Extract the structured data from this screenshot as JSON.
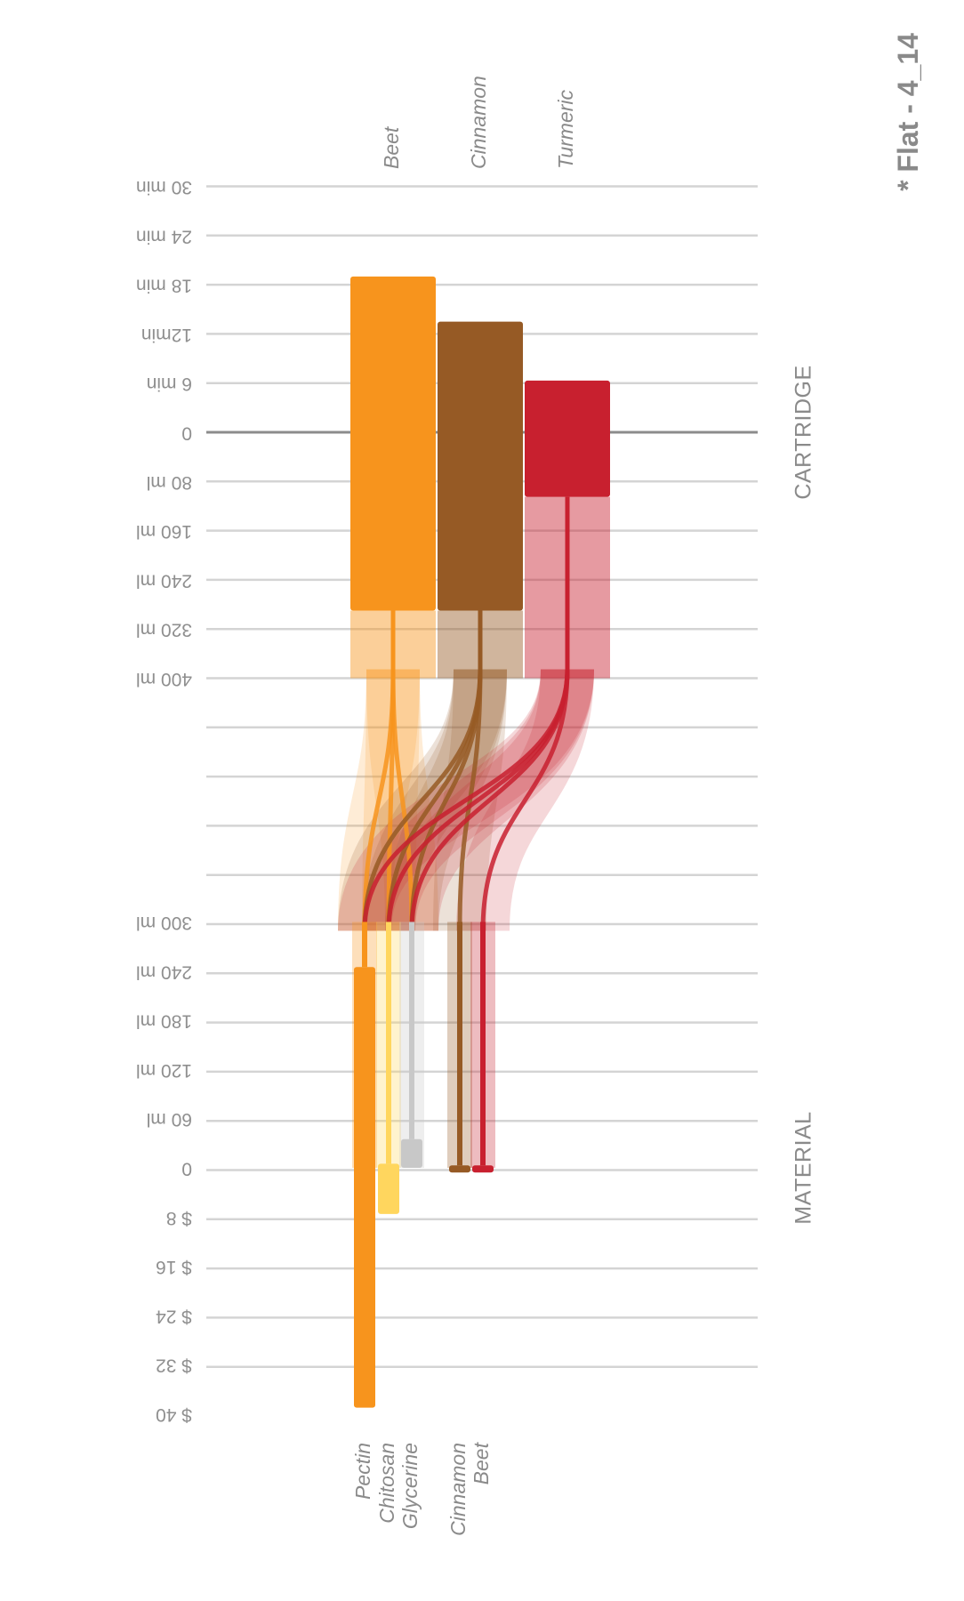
{
  "title": "* Flat - 4_14",
  "chart_data": {
    "type": "bar",
    "sections": [
      {
        "name": "CARTRIDGE",
        "panels": [
          {
            "key": "time",
            "ticks": [
              "0",
              "6 min",
              "12min",
              "18 min",
              "24 min",
              "30 min"
            ],
            "max": 30
          },
          {
            "key": "volume",
            "ticks": [
              "80 ml",
              "160 ml",
              "240 ml",
              "320 ml",
              "400 ml"
            ],
            "max": 400
          }
        ],
        "series": [
          {
            "name": "Beet",
            "color": "#f7941d",
            "time": 19,
            "volume": 290
          },
          {
            "name": "Cinnamon",
            "color": "#965a25",
            "time": 13.5,
            "volume": 290
          },
          {
            "name": "Turmeric",
            "color": "#c8202f",
            "time": 6.3,
            "volume": 105
          }
        ]
      },
      {
        "name": "MATERIAL",
        "panels": [
          {
            "key": "volume",
            "ticks": [
              "0",
              "60 ml",
              "120 ml",
              "180 ml",
              "240 ml",
              "300 ml"
            ],
            "max": 300
          },
          {
            "key": "cost",
            "ticks": [
              "$ 8",
              "$ 16",
              "$ 24",
              "$ 32",
              "$ 40"
            ],
            "max": 40
          }
        ],
        "series": [
          {
            "name": "Pectin",
            "color": "#f7941d",
            "volume": 245,
            "cost": 39
          },
          {
            "name": "Chitosan",
            "color": "#ffd65e",
            "volume": 5,
            "cost": 7.5
          },
          {
            "name": "Glycerine",
            "color": "#c8c8c8",
            "volume": 35,
            "cost": 0
          },
          {
            "name": "Cinnamon",
            "color": "#965a25",
            "volume": 3,
            "cost": 0
          },
          {
            "name": "Beet",
            "color": "#c8202f",
            "volume": 3,
            "cost": 0
          }
        ]
      }
    ],
    "flows": [
      {
        "from": "Beet",
        "to": [
          "Pectin",
          "Chitosan",
          "Glycerine"
        ]
      },
      {
        "from": "Cinnamon",
        "to": [
          "Pectin",
          "Chitosan",
          "Glycerine",
          "Cinnamon"
        ]
      },
      {
        "from": "Turmeric",
        "to": [
          "Pectin",
          "Chitosan",
          "Glycerine",
          "Beet"
        ]
      }
    ],
    "grid": true
  }
}
